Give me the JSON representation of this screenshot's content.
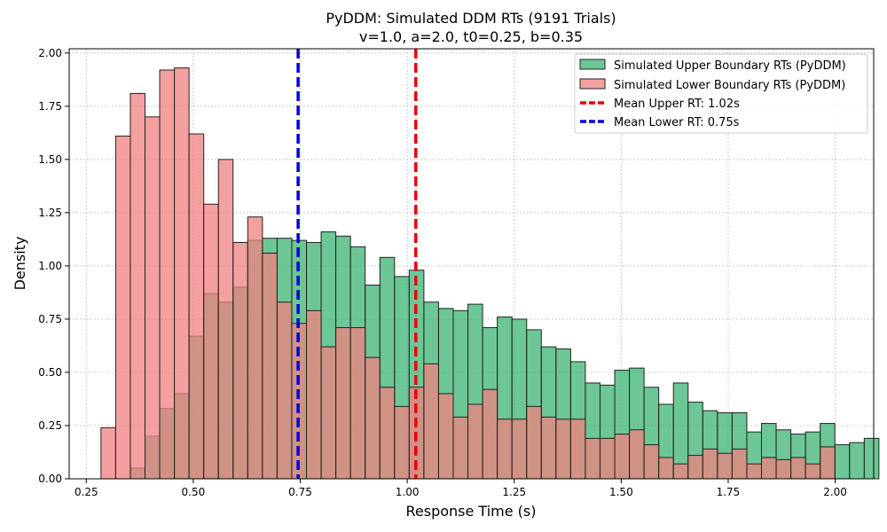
{
  "chart_data": {
    "type": "histogram",
    "title": "PyDDM: Simulated DDM RTs (9191 Trials)",
    "subtitle": "v=1.0, a=2.0, t0=0.25, b=0.35",
    "xlabel": "Response Time (s)",
    "ylabel": "Density",
    "xlim": [
      0.21,
      2.09
    ],
    "ylim": [
      0,
      2.02
    ],
    "xticks": [
      0.25,
      0.5,
      0.75,
      1.0,
      1.25,
      1.5,
      1.75,
      2.0
    ],
    "xtick_labels": [
      "0.25",
      "0.50",
      "0.75",
      "1.00",
      "1.25",
      "1.50",
      "1.75",
      "2.00"
    ],
    "yticks": [
      0.0,
      0.25,
      0.5,
      0.75,
      1.0,
      1.25,
      1.5,
      1.75,
      2.0
    ],
    "ytick_labels": [
      "0.00",
      "0.25",
      "0.50",
      "0.75",
      "1.00",
      "1.25",
      "1.50",
      "1.75",
      "2.00"
    ],
    "grid": true,
    "legend_position": "top-right",
    "colors": {
      "upper": "#3cb371",
      "lower": "#f08080",
      "mean_upper": "#ee0000",
      "mean_lower": "#0000dd"
    },
    "series": [
      {
        "name": "Simulated Upper Boundary RTs (PyDDM)",
        "bin_start": 0.2843,
        "bin_width": 0.0343,
        "values": [
          0,
          0,
          0.05,
          0.2,
          0.33,
          0.4,
          0.67,
          0.87,
          0.83,
          0.9,
          1.12,
          1.13,
          1.13,
          1.12,
          1.11,
          1.16,
          1.14,
          1.09,
          0.91,
          1.04,
          0.95,
          0.98,
          0.83,
          0.8,
          0.79,
          0.82,
          0.71,
          0.76,
          0.75,
          0.7,
          0.62,
          0.61,
          0.55,
          0.45,
          0.44,
          0.51,
          0.52,
          0.43,
          0.35,
          0.45,
          0.36,
          0.32,
          0.31,
          0.31,
          0.22,
          0.26,
          0.23,
          0.21,
          0.22,
          0.26,
          0.16,
          0.17,
          0.19
        ]
      },
      {
        "name": "Simulated Lower Boundary RTs (PyDDM)",
        "bin_start": 0.2843,
        "bin_width": 0.0343,
        "values": [
          0.24,
          1.61,
          1.81,
          1.7,
          1.92,
          1.93,
          1.62,
          1.29,
          1.5,
          1.11,
          1.23,
          1.06,
          0.83,
          0.73,
          0.79,
          0.62,
          0.71,
          0.71,
          0.57,
          0.43,
          0.34,
          0.43,
          0.54,
          0.4,
          0.29,
          0.35,
          0.42,
          0.28,
          0.28,
          0.34,
          0.29,
          0.28,
          0.28,
          0.19,
          0.19,
          0.21,
          0.23,
          0.16,
          0.1,
          0.07,
          0.11,
          0.14,
          0.12,
          0.14,
          0.07,
          0.1,
          0.09,
          0.1,
          0.07,
          0.15
        ]
      }
    ],
    "reference_lines": [
      {
        "name": "Mean Upper RT: 1.02s",
        "x": 1.02,
        "color_key": "mean_upper"
      },
      {
        "name": "Mean Lower RT: 0.75s",
        "x": 0.745,
        "color_key": "mean_lower"
      }
    ]
  }
}
